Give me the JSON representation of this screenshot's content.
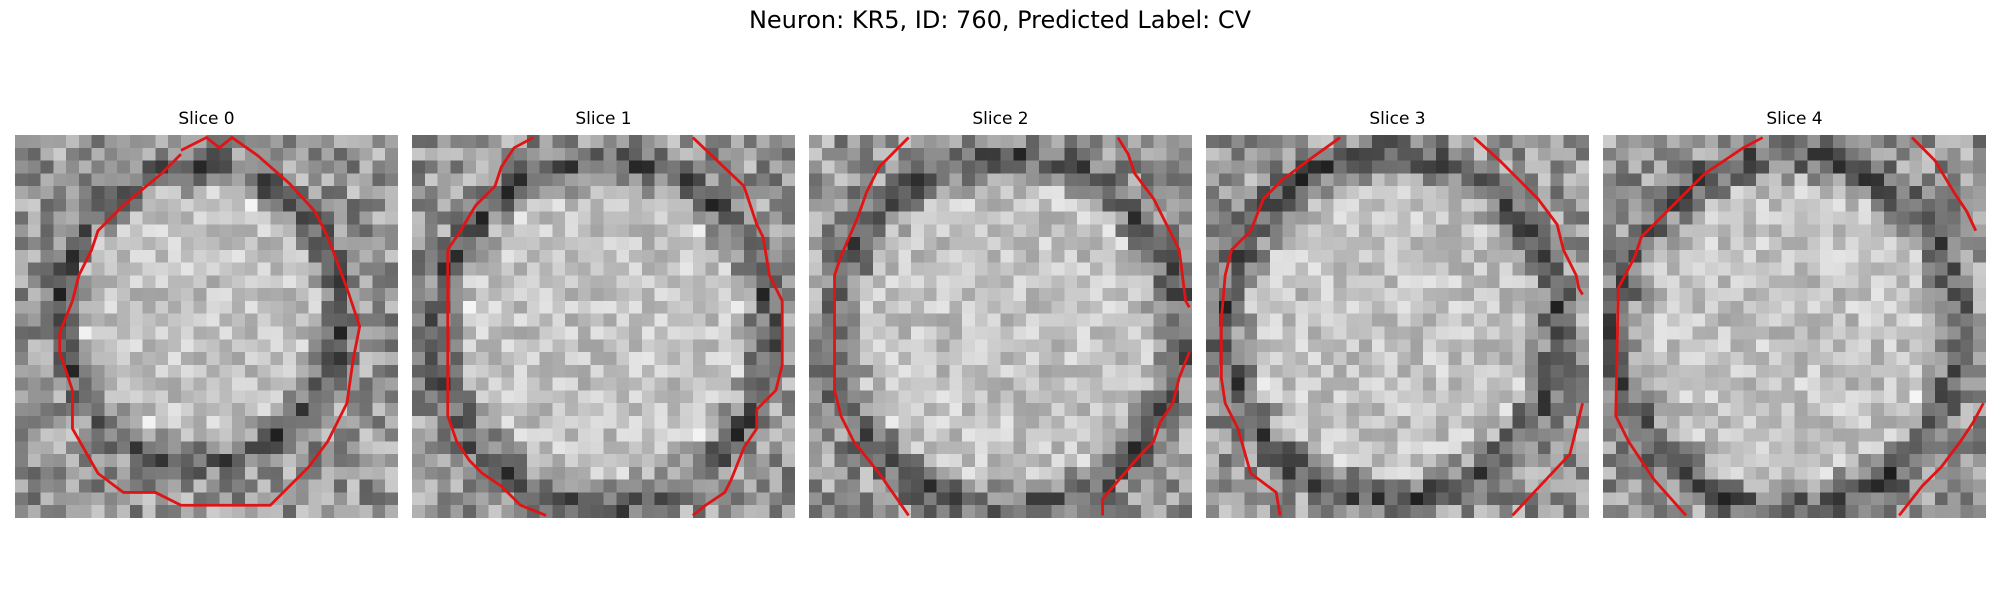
{
  "figure": {
    "title": "Neuron: KR5, ID: 760, Predicted Label: CV"
  },
  "slices": [
    {
      "title": "Slice 0"
    },
    {
      "title": "Slice 1"
    },
    {
      "title": "Slice 2"
    },
    {
      "title": "Slice 3"
    },
    {
      "title": "Slice 4"
    }
  ],
  "colors": {
    "contour": "#e01414",
    "background": "#ffffff"
  }
}
